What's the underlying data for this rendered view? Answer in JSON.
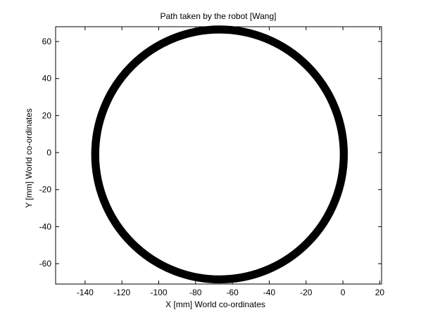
{
  "chart_data": {
    "type": "line",
    "title": "Path taken by the robot [Wang]",
    "xlabel": "X [mm] World co-ordinates",
    "ylabel": "Y [mm] World co-ordinates",
    "xlim": [
      -156,
      21
    ],
    "ylim": [
      -71,
      68
    ],
    "xticks": [
      -140,
      -120,
      -100,
      -80,
      -60,
      -40,
      -20,
      0,
      20
    ],
    "yticks": [
      -60,
      -40,
      -20,
      0,
      20,
      40,
      60
    ],
    "xtick_labels": [
      "-140",
      "-120",
      "-100",
      "-80",
      "-60",
      "-40",
      "-20",
      "0",
      "20"
    ],
    "ytick_labels": [
      "-60",
      "-40",
      "-20",
      "0",
      "20",
      "40",
      "60"
    ],
    "grid": false,
    "series": [
      {
        "shape": "circular path (many overlapping loops)",
        "center": [
          -67,
          -1
        ],
        "radius": 67.5,
        "band_width": 3.5,
        "color": "#000000",
        "start_point": [
          -22,
          50
        ]
      }
    ]
  }
}
